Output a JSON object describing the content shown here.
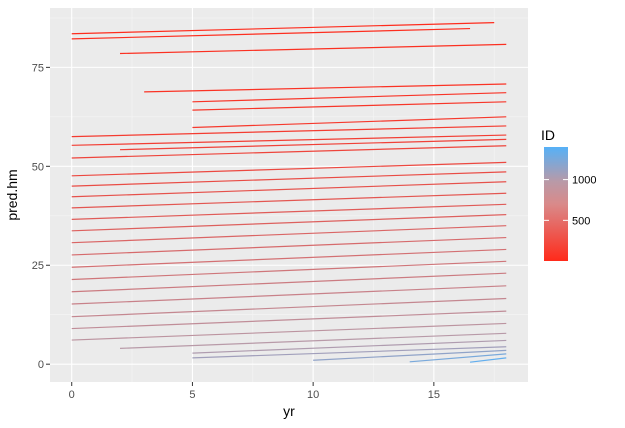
{
  "chart_data": {
    "type": "line",
    "title": "",
    "xlabel": "yr",
    "ylabel": "pred.hm",
    "xlim": [
      -0.9,
      18.9
    ],
    "ylim": [
      -4.5,
      90
    ],
    "x_ticks": [
      0,
      5,
      10,
      15
    ],
    "x_tick_labels": [
      "0",
      "5",
      "10",
      "15"
    ],
    "y_ticks": [
      0,
      25,
      50,
      75
    ],
    "y_tick_labels": [
      "0",
      "25",
      "50",
      "75"
    ],
    "grid": true,
    "legend": {
      "title": "ID",
      "position": "right",
      "ticks": [
        500,
        1000
      ],
      "tick_labels": [
        "500",
        "1000"
      ],
      "range": [
        1,
        1400
      ],
      "low_color": "#ff2a1a",
      "mid_color": "#b89aa8",
      "high_color": "#56b1f7"
    },
    "series_summary": "one line per ID, approx 1400 series",
    "series": [
      {
        "id": 60,
        "values": [
          [
            0,
            83.5
          ],
          [
            17.5,
            86.3
          ]
        ]
      },
      {
        "id": 90,
        "values": [
          [
            0,
            82.2
          ],
          [
            16.5,
            84.8
          ]
        ]
      },
      {
        "id": 120,
        "values": [
          [
            2,
            78.5
          ],
          [
            18,
            80.8
          ]
        ]
      },
      {
        "id": 150,
        "values": [
          [
            3,
            68.8
          ],
          [
            18,
            70.8
          ]
        ]
      },
      {
        "id": 180,
        "values": [
          [
            5,
            66.3
          ],
          [
            18,
            68.6
          ]
        ]
      },
      {
        "id": 200,
        "values": [
          [
            5,
            64.2
          ],
          [
            18,
            66.3
          ]
        ]
      },
      {
        "id": 230,
        "values": [
          [
            5,
            59.8
          ],
          [
            18,
            62.5
          ]
        ]
      },
      {
        "id": 260,
        "values": [
          [
            0,
            57.5
          ],
          [
            18,
            60.2
          ]
        ]
      },
      {
        "id": 290,
        "values": [
          [
            0,
            55.3
          ],
          [
            18,
            57.9
          ]
        ]
      },
      {
        "id": 320,
        "values": [
          [
            2,
            54.2
          ],
          [
            18,
            56.8
          ]
        ]
      },
      {
        "id": 350,
        "values": [
          [
            0,
            52.1
          ],
          [
            18,
            55.2
          ]
        ]
      },
      {
        "id": 380,
        "values": [
          [
            0,
            47.6
          ],
          [
            18,
            51.0
          ]
        ]
      },
      {
        "id": 420,
        "values": [
          [
            0,
            45.0
          ],
          [
            18,
            48.6
          ]
        ]
      },
      {
        "id": 460,
        "values": [
          [
            0,
            42.3
          ],
          [
            18,
            46.1
          ]
        ]
      },
      {
        "id": 500,
        "values": [
          [
            0,
            39.5
          ],
          [
            18,
            43.2
          ]
        ]
      },
      {
        "id": 540,
        "values": [
          [
            0,
            36.6
          ],
          [
            18,
            40.4
          ]
        ]
      },
      {
        "id": 580,
        "values": [
          [
            0,
            33.7
          ],
          [
            18,
            37.8
          ]
        ]
      },
      {
        "id": 620,
        "values": [
          [
            0,
            30.7
          ],
          [
            18,
            35.0
          ]
        ]
      },
      {
        "id": 660,
        "values": [
          [
            0,
            27.6
          ],
          [
            18,
            32.0
          ]
        ]
      },
      {
        "id": 700,
        "values": [
          [
            0,
            24.5
          ],
          [
            18,
            29.0
          ]
        ]
      },
      {
        "id": 740,
        "values": [
          [
            0,
            21.4
          ],
          [
            18,
            26.0
          ]
        ]
      },
      {
        "id": 780,
        "values": [
          [
            0,
            18.3
          ],
          [
            18,
            23.0
          ]
        ]
      },
      {
        "id": 820,
        "values": [
          [
            0,
            15.2
          ],
          [
            18,
            19.8
          ]
        ]
      },
      {
        "id": 860,
        "values": [
          [
            0,
            12.0
          ],
          [
            18,
            16.6
          ]
        ]
      },
      {
        "id": 900,
        "values": [
          [
            0,
            9.0
          ],
          [
            18,
            13.4
          ]
        ]
      },
      {
        "id": 940,
        "values": [
          [
            0,
            6.1
          ],
          [
            18,
            10.3
          ]
        ]
      },
      {
        "id": 980,
        "values": [
          [
            2,
            4.0
          ],
          [
            18,
            7.8
          ]
        ]
      },
      {
        "id": 1020,
        "values": [
          [
            5,
            2.8
          ],
          [
            18,
            6.0
          ]
        ]
      },
      {
        "id": 1080,
        "values": [
          [
            5,
            1.6
          ],
          [
            18,
            4.4
          ]
        ]
      },
      {
        "id": 1150,
        "values": [
          [
            10,
            1.0
          ],
          [
            18,
            3.5
          ]
        ]
      },
      {
        "id": 1250,
        "values": [
          [
            14,
            0.6
          ],
          [
            18,
            2.6
          ]
        ]
      },
      {
        "id": 1350,
        "values": [
          [
            16.5,
            0.5
          ],
          [
            18,
            1.6
          ]
        ]
      }
    ]
  }
}
